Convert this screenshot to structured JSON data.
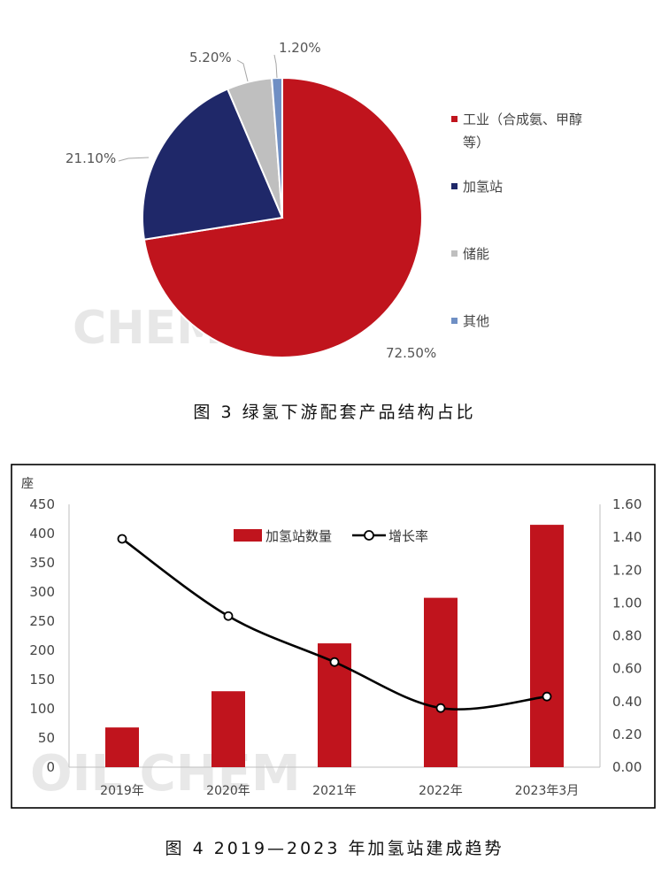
{
  "figure1": {
    "caption": "图 3  绿氢下游配套产品结构占比",
    "watermark": "CHEM",
    "chart_data": {
      "type": "pie",
      "slices": [
        {
          "label": "工业（合成氨、甲醇等）",
          "value": 72.5,
          "display": "72.50%",
          "color": "#c0141d"
        },
        {
          "label": "加氢站",
          "value": 21.1,
          "display": "21.10%",
          "color": "#1f2869"
        },
        {
          "label": "储能",
          "value": 5.2,
          "display": "5.20%",
          "color": "#bfbfbf"
        },
        {
          "label": "其他",
          "value": 1.2,
          "display": "1.20%",
          "color": "#6f8fc4"
        }
      ],
      "legend_position": "right",
      "legend_lines": [
        [
          "工业（合成氨、甲醇",
          "等）"
        ],
        [
          "加氢站"
        ],
        [
          "储能"
        ],
        [
          "其他"
        ]
      ]
    }
  },
  "figure2": {
    "caption": "图 4  2019—2023 年加氢站建成趋势",
    "watermark": "OIL CHEM",
    "chart_data": {
      "type": "bar",
      "categories": [
        "2019年",
        "2020年",
        "2021年",
        "2022年",
        "2023年3月"
      ],
      "series": [
        {
          "name": "加氢站数量",
          "type": "bar",
          "axis": "left",
          "color": "#c0141d",
          "values": [
            68,
            130,
            212,
            290,
            415
          ]
        },
        {
          "name": "增长率",
          "type": "line",
          "axis": "right",
          "color": "#000000",
          "values": [
            1.39,
            0.92,
            0.64,
            0.36,
            0.43
          ]
        }
      ],
      "left_axis": {
        "unit": "座",
        "min": 0,
        "max": 450,
        "ticks": [
          "0",
          "50",
          "100",
          "150",
          "200",
          "250",
          "300",
          "350",
          "400",
          "450"
        ]
      },
      "right_axis": {
        "min": 0,
        "max": 1.6,
        "ticks": [
          "0.00",
          "0.20",
          "0.40",
          "0.60",
          "0.80",
          "1.00",
          "1.20",
          "1.40",
          "1.60"
        ]
      },
      "legend_position": "top-center",
      "grid": false
    }
  }
}
